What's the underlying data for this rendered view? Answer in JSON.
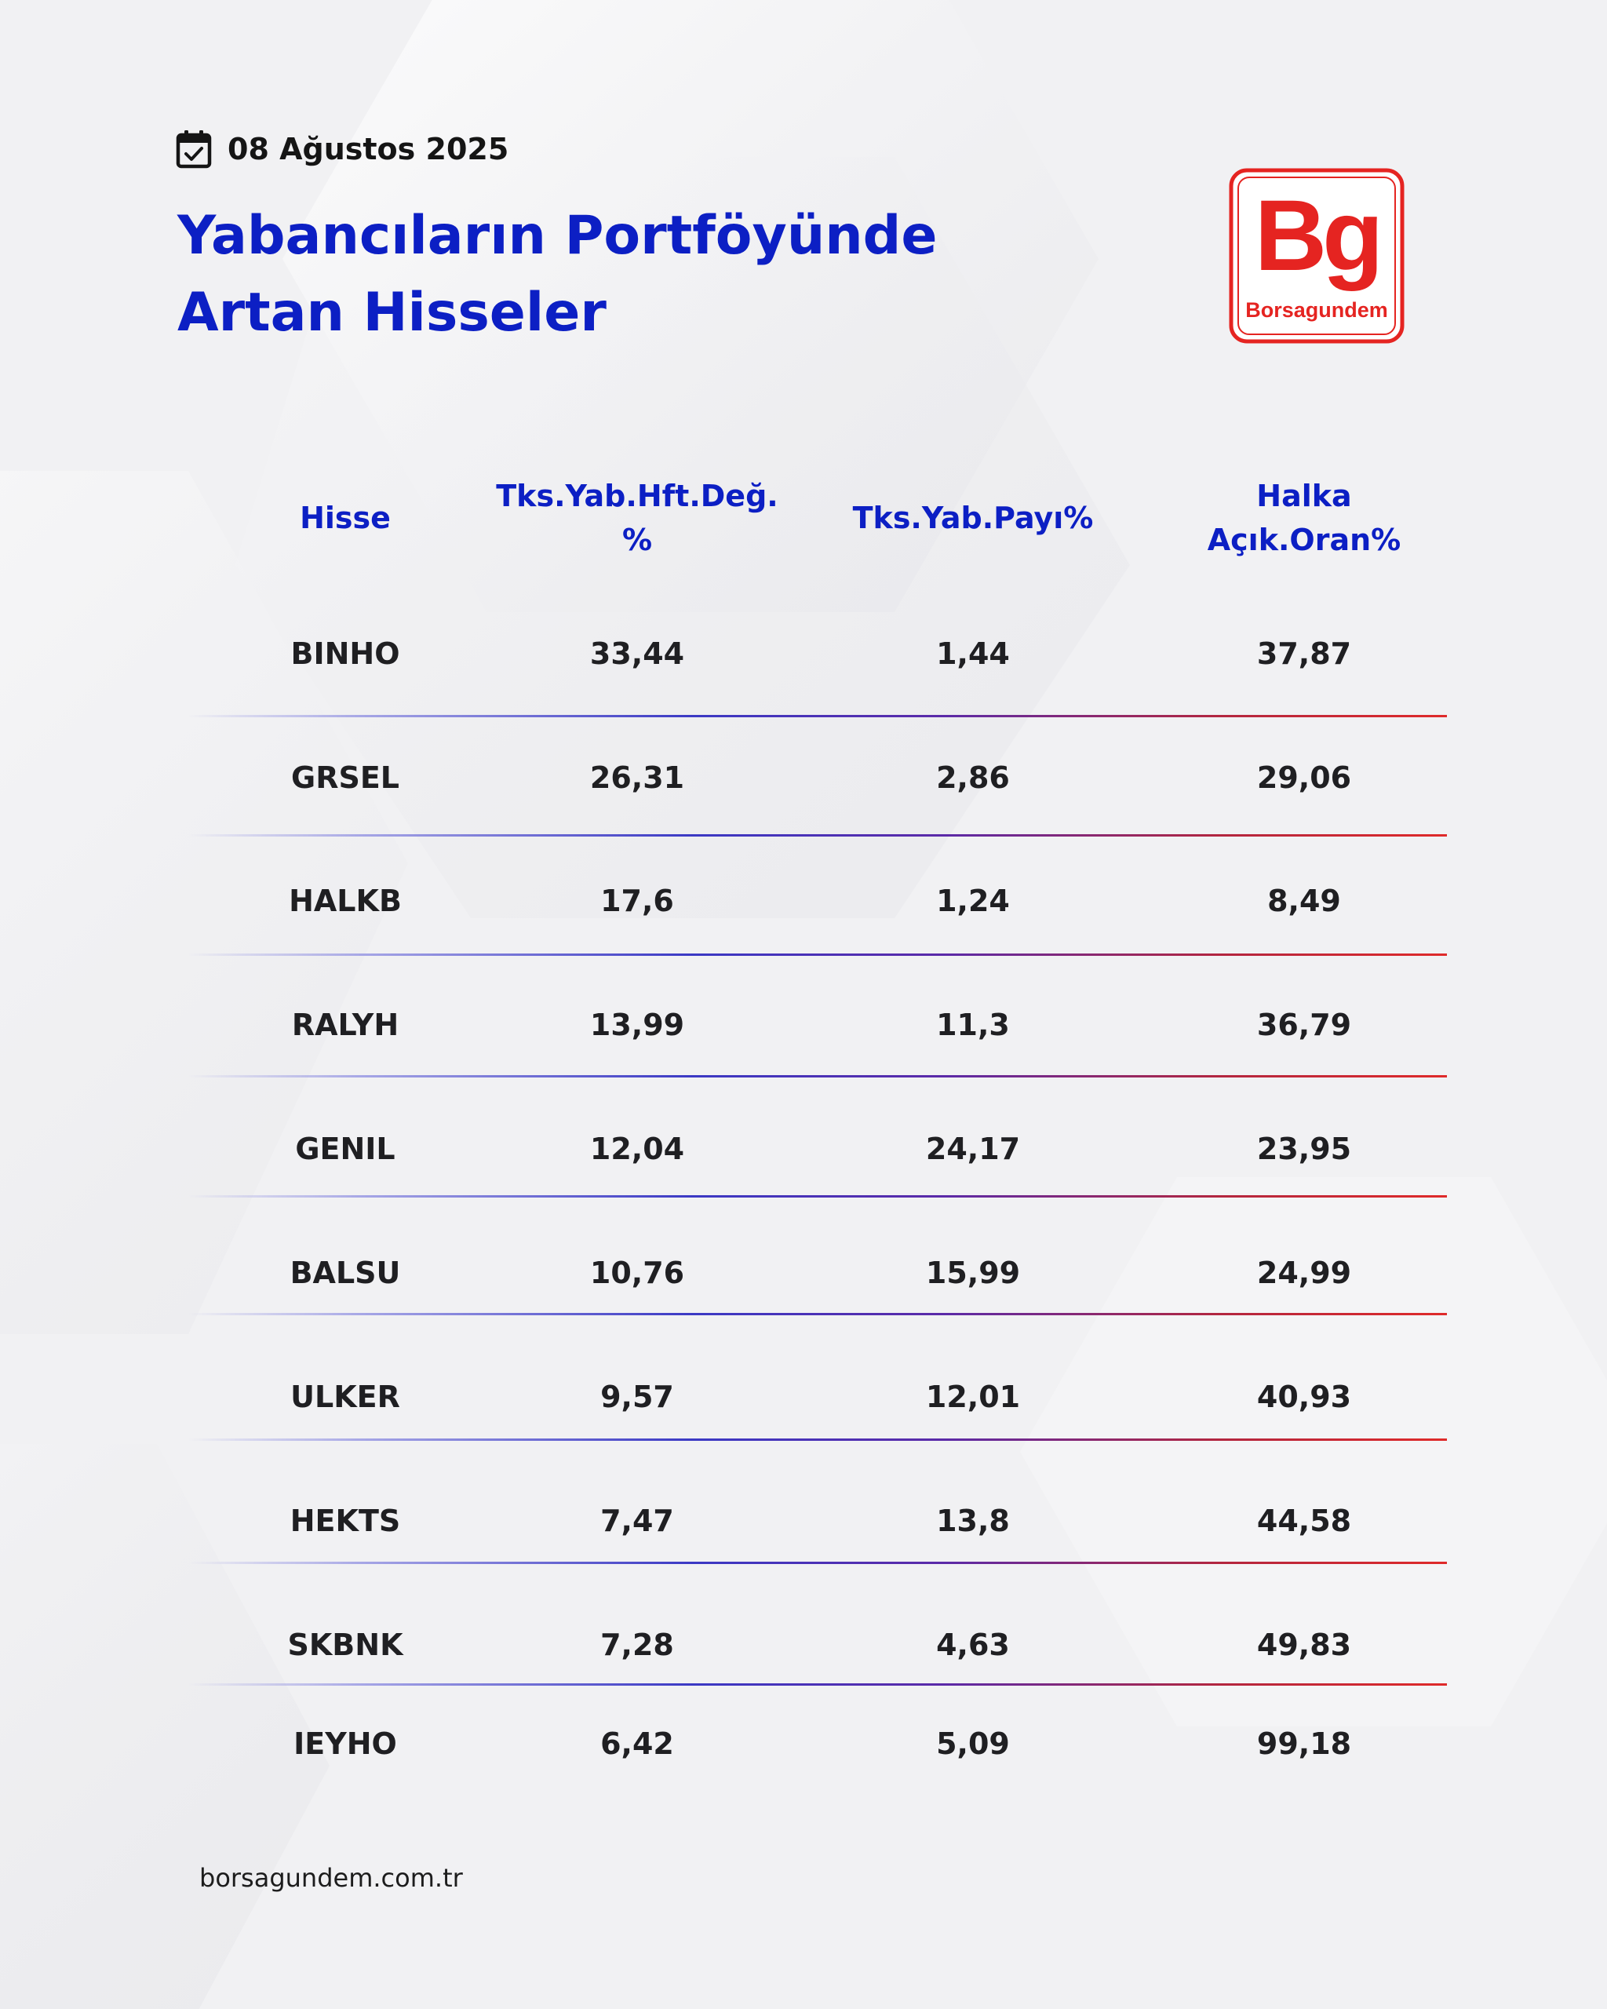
{
  "header": {
    "date": "08 Ağustos 2025",
    "calendar_icon": "calendar-check-icon",
    "title_line1": "Yabancıların Portföyünde",
    "title_line2": "Artan Hisseler"
  },
  "logo": {
    "mark": "Bg",
    "name": "Borsagundem",
    "brand_color": "#e52421"
  },
  "table": {
    "headers": {
      "hisse": "Hisse",
      "hft_line1": "Tks.Yab.Hft.Değ.",
      "hft_line2": "%",
      "payi": "Tks.Yab.Payı%",
      "halka_line1": "Halka",
      "halka_line2": "Açık.Oran%"
    },
    "rows": [
      {
        "hisse": "BINHO",
        "hft": "33,44",
        "payi": "1,44",
        "halka": "37,87"
      },
      {
        "hisse": "GRSEL",
        "hft": "26,31",
        "payi": "2,86",
        "halka": "29,06"
      },
      {
        "hisse": "HALKB",
        "hft": "17,6",
        "payi": "1,24",
        "halka": "8,49"
      },
      {
        "hisse": "RALYH",
        "hft": "13,99",
        "payi": "11,3",
        "halka": "36,79"
      },
      {
        "hisse": "GENIL",
        "hft": "12,04",
        "payi": "24,17",
        "halka": "23,95"
      },
      {
        "hisse": "BALSU",
        "hft": "10,76",
        "payi": "15,99",
        "halka": "24,99"
      },
      {
        "hisse": "ULKER",
        "hft": "9,57",
        "payi": "12,01",
        "halka": "40,93"
      },
      {
        "hisse": "HEKTS",
        "hft": "7,47",
        "payi": "13,8",
        "halka": "44,58"
      },
      {
        "hisse": "SKBNK",
        "hft": "7,28",
        "payi": "4,63",
        "halka": "49,83"
      },
      {
        "hisse": "IEYHO",
        "hft": "6,42",
        "payi": "5,09",
        "halka": "99,18"
      }
    ]
  },
  "footer": {
    "url": "borsagundem.com.tr"
  },
  "colors": {
    "title_blue": "#0c1fc4",
    "text_dark": "#1f1f22",
    "brand_red": "#e52421"
  }
}
